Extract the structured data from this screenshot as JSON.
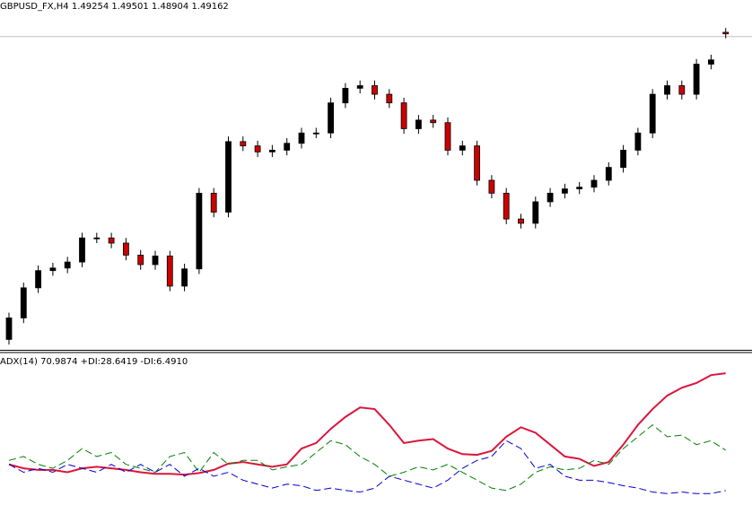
{
  "chart_data": [
    {
      "type": "candlestick",
      "title": "GBPUSD_FX,H4  1.49254 1.49501 1.48904 1.49162",
      "ylim": [
        1.309,
        1.504
      ],
      "up_color": "#000000",
      "down_color": "#cc0000",
      "open": [
        1.314,
        1.3265,
        1.344,
        1.354,
        1.3555,
        1.359,
        1.373,
        1.373,
        1.37,
        1.363,
        1.3575,
        1.3625,
        1.345,
        1.355,
        1.399,
        1.388,
        1.429,
        1.4265,
        1.423,
        1.424,
        1.428,
        1.434,
        1.434,
        1.4515,
        1.46,
        1.4615,
        1.4565,
        1.4515,
        1.4365,
        1.4415,
        1.44,
        1.424,
        1.4265,
        1.4065,
        1.399,
        1.384,
        1.3815,
        1.394,
        1.399,
        1.4015,
        1.4025,
        1.4065,
        1.414,
        1.424,
        1.434,
        1.4565,
        1.4615,
        1.4565,
        1.474,
        1.49254
      ],
      "high": [
        1.3295,
        1.347,
        1.357,
        1.3585,
        1.362,
        1.376,
        1.376,
        1.376,
        1.373,
        1.366,
        1.3655,
        1.3655,
        1.358,
        1.402,
        1.402,
        1.432,
        1.432,
        1.4295,
        1.427,
        1.431,
        1.437,
        1.437,
        1.4545,
        1.463,
        1.4645,
        1.4645,
        1.4595,
        1.4545,
        1.4445,
        1.4445,
        1.443,
        1.4295,
        1.4295,
        1.4095,
        1.402,
        1.387,
        1.397,
        1.402,
        1.4045,
        1.4055,
        1.4095,
        1.417,
        1.427,
        1.437,
        1.4595,
        1.4645,
        1.4645,
        1.477,
        1.4795,
        1.49501
      ],
      "low": [
        1.311,
        1.3235,
        1.341,
        1.351,
        1.3525,
        1.356,
        1.37,
        1.367,
        1.36,
        1.3545,
        1.3545,
        1.342,
        1.342,
        1.352,
        1.385,
        1.385,
        1.4235,
        1.42,
        1.42,
        1.421,
        1.425,
        1.431,
        1.431,
        1.4485,
        1.457,
        1.4535,
        1.4485,
        1.4335,
        1.4335,
        1.437,
        1.421,
        1.421,
        1.4035,
        1.396,
        1.381,
        1.3785,
        1.3785,
        1.391,
        1.396,
        1.3985,
        1.3995,
        1.4035,
        1.411,
        1.421,
        1.431,
        1.4535,
        1.4535,
        1.4535,
        1.471,
        1.48904
      ],
      "close": [
        1.3265,
        1.344,
        1.354,
        1.3555,
        1.359,
        1.373,
        1.373,
        1.37,
        1.363,
        1.3575,
        1.3625,
        1.345,
        1.355,
        1.399,
        1.388,
        1.429,
        1.4265,
        1.423,
        1.424,
        1.428,
        1.434,
        1.434,
        1.4515,
        1.46,
        1.4615,
        1.4565,
        1.4515,
        1.4365,
        1.4415,
        1.44,
        1.424,
        1.4265,
        1.4065,
        1.399,
        1.384,
        1.3815,
        1.394,
        1.399,
        1.4015,
        1.4025,
        1.4065,
        1.414,
        1.424,
        1.434,
        1.4565,
        1.4615,
        1.4565,
        1.474,
        1.4765,
        1.49162
      ]
    },
    {
      "type": "line",
      "title": "ADX(14) 70.9874 +DI:28.6419 -DI:6.4910",
      "ylim": [
        0,
        73
      ],
      "series": [
        {
          "name": "ADX",
          "color": "#dc143c",
          "style": "solid",
          "values": [
            20.86,
            18.68,
            17.81,
            17.81,
            16.51,
            18.68,
            19.55,
            18.68,
            17.81,
            16.51,
            15.64,
            15.64,
            15.21,
            16.08,
            17.81,
            21.29,
            22.16,
            20.86,
            19.55,
            20.86,
            29.55,
            32.59,
            40.41,
            46.93,
            52.14,
            51.27,
            42.58,
            32.59,
            33.89,
            34.76,
            29.55,
            26.5,
            26.07,
            28.24,
            36.06,
            41.28,
            38.24,
            31.72,
            25.2,
            23.9,
            19.99,
            22.16,
            31.72,
            42.58,
            51.27,
            58.66,
            63.0,
            65.61,
            69.95,
            70.9874
          ]
        },
        {
          "name": "+DI",
          "color": "#008000",
          "style": "dashed",
          "values": [
            23.03,
            25.2,
            20.86,
            18.68,
            23.03,
            29.55,
            25.2,
            27.37,
            20.86,
            18.68,
            16.51,
            25.2,
            27.37,
            16.51,
            27.37,
            20.86,
            23.03,
            23.03,
            17.81,
            19.55,
            20.86,
            27.37,
            33.89,
            31.72,
            25.2,
            20.86,
            14.34,
            16.51,
            19.55,
            17.81,
            20.86,
            16.51,
            12.17,
            7.82,
            6.52,
            9.99,
            16.51,
            19.55,
            17.81,
            18.68,
            23.03,
            20.86,
            29.55,
            36.06,
            42.58,
            36.06,
            36.93,
            31.72,
            33.89,
            28.6419
          ]
        },
        {
          "name": "-DI",
          "color": "#0000cd",
          "style": "dashed",
          "values": [
            20.86,
            16.51,
            18.68,
            16.51,
            20.86,
            18.68,
            16.51,
            20.86,
            16.51,
            20.86,
            16.51,
            20.86,
            14.34,
            18.68,
            14.34,
            16.51,
            12.17,
            9.99,
            7.82,
            9.99,
            9.12,
            6.52,
            7.82,
            6.52,
            5.65,
            7.82,
            14.34,
            12.17,
            9.99,
            7.82,
            12.17,
            18.68,
            23.03,
            25.2,
            33.89,
            29.55,
            18.68,
            20.86,
            14.34,
            12.17,
            12.17,
            10.86,
            9.12,
            7.82,
            5.65,
            4.78,
            5.65,
            4.78,
            4.78,
            6.491
          ]
        }
      ]
    }
  ]
}
